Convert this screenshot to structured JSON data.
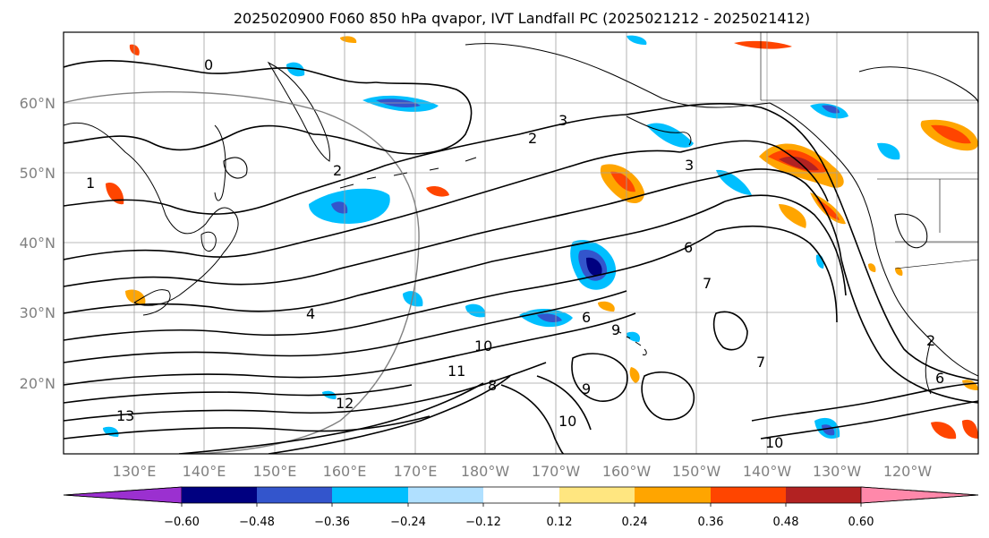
{
  "title": "2025020900 F060 850 hPa qvapor, IVT Landfall PC (2025021212 - 2025021412)",
  "lat_labels": [
    "60°N",
    "50°N",
    "40°N",
    "30°N",
    "20°N"
  ],
  "lon_labels": [
    "130°E",
    "140°E",
    "150°E",
    "160°E",
    "170°E",
    "180°W",
    "170°W",
    "160°W",
    "150°W",
    "140°W",
    "130°W",
    "120°W"
  ],
  "colorbar": {
    "ticks": [
      "−0.60",
      "−0.48",
      "−0.36",
      "−0.24",
      "−0.12",
      "0.12",
      "0.24",
      "0.36",
      "0.48",
      "0.60"
    ],
    "colors": [
      "#9b30d0",
      "#000080",
      "#3355cc",
      "#00bfff",
      "#b0e0ff",
      "#ffffff",
      "#ffe680",
      "#ffa500",
      "#ff4500",
      "#b22222",
      "#ff88aa"
    ]
  },
  "contour_labels": [
    "0",
    "1",
    "2",
    "3",
    "4",
    "6",
    "7",
    "8",
    "9",
    "10",
    "11",
    "12",
    "13",
    "2",
    "3",
    "6",
    "7",
    "9",
    "10",
    "10",
    "2",
    "6"
  ],
  "shading_colors": {
    "pos_weak": "#ffe680",
    "pos_mid": "#ffa500",
    "pos_strong": "#ff4500",
    "pos_max": "#b22222",
    "neg_weak": "#b0e0ff",
    "neg_mid": "#00bfff",
    "neg_strong": "#3355cc",
    "neg_max": "#000080",
    "neg_ext": "#9b30d0"
  }
}
